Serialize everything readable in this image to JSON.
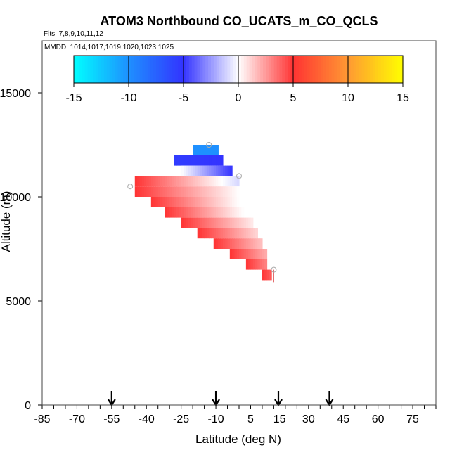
{
  "chart_data": {
    "type": "heatmap",
    "title": "ATOM3 Northbound CO_UCATS_m_CO_QCLS",
    "subtitle_flights": "Flts: 7,8,9,10,11,12",
    "subtitle_dates": "MMDD: 1014,1017,1019,1020,1023,1025",
    "xlabel": "Latitude (deg N)",
    "ylabel": "Altitude (m)",
    "xlim": [
      -85,
      85
    ],
    "ylim": [
      0,
      17500
    ],
    "x_ticks": [
      -85,
      -80,
      -75,
      -70,
      -65,
      -60,
      -55,
      -50,
      -45,
      -40,
      -35,
      -30,
      -25,
      -20,
      -15,
      -10,
      -5,
      0,
      5,
      10,
      15,
      20,
      25,
      30,
      35,
      40,
      45,
      50,
      55,
      60,
      65,
      70,
      75,
      80,
      85
    ],
    "x_tick_labels": [
      "-85",
      "-70",
      "-55",
      "-40",
      "-25",
      "-10",
      "5",
      "15",
      "30",
      "45",
      "60",
      "75"
    ],
    "x_tick_label_values": [
      -85,
      -70,
      -55,
      -40,
      -25,
      -10,
      5,
      17.5,
      30,
      45,
      60,
      75
    ],
    "y_ticks": [
      0,
      5000,
      10000,
      15000
    ],
    "y_tick_labels": [
      "0",
      "5000",
      "10000",
      "15000"
    ],
    "colorbar": {
      "min": -15,
      "max": 15,
      "ticks": [
        -15,
        -10,
        -5,
        0,
        5,
        10,
        15
      ],
      "tick_labels": [
        "-15",
        "-10",
        "-5",
        "0",
        "5",
        "10",
        "15"
      ],
      "stops": [
        {
          "v": -15,
          "c": "#00ffff"
        },
        {
          "v": -10,
          "c": "#1e90ff"
        },
        {
          "v": -5,
          "c": "#3333ff"
        },
        {
          "v": 0,
          "c": "#ffffff"
        },
        {
          "v": 5,
          "c": "#ff3333"
        },
        {
          "v": 10,
          "c": "#ff9933"
        },
        {
          "v": 15,
          "c": "#ffff00"
        }
      ]
    },
    "arrows_latitude": [
      -55,
      -10,
      17,
      39
    ],
    "rows": [
      {
        "alt": [
          12000,
          12500
        ],
        "lat": [
          -20,
          -9
        ],
        "from": -10,
        "to": -10
      },
      {
        "alt": [
          11500,
          12000
        ],
        "lat": [
          -28,
          -7
        ],
        "from": -5.5,
        "to": -5
      },
      {
        "alt": [
          11000,
          11500
        ],
        "lat": [
          -25,
          -3
        ],
        "from": 0,
        "to": -5
      },
      {
        "alt": [
          10500,
          11000
        ],
        "lat": [
          -45,
          0
        ],
        "from": 5,
        "to": -1
      },
      {
        "alt": [
          10000,
          10500
        ],
        "lat": [
          -45,
          0
        ],
        "from": 5,
        "to": 0
      },
      {
        "alt": [
          9500,
          10000
        ],
        "lat": [
          -38,
          0
        ],
        "from": 5,
        "to": 0
      },
      {
        "alt": [
          9000,
          9500
        ],
        "lat": [
          -32,
          2
        ],
        "from": 5,
        "to": 0
      },
      {
        "alt": [
          8500,
          9000
        ],
        "lat": [
          -25,
          6
        ],
        "from": 5,
        "to": 0.5
      },
      {
        "alt": [
          8000,
          8500
        ],
        "lat": [
          -18,
          8
        ],
        "from": 5,
        "to": 1
      },
      {
        "alt": [
          7500,
          8000
        ],
        "lat": [
          -11,
          10
        ],
        "from": 5,
        "to": 1.5
      },
      {
        "alt": [
          7000,
          7500
        ],
        "lat": [
          -4,
          12
        ],
        "from": 5,
        "to": 2
      },
      {
        "alt": [
          6500,
          7000
        ],
        "lat": [
          3,
          12
        ],
        "from": 5,
        "to": 3
      },
      {
        "alt": [
          6000,
          6500
        ],
        "lat": [
          10,
          14
        ],
        "from": 5,
        "to": 4
      }
    ],
    "markers": [
      {
        "lat": -47,
        "alt": 10500
      },
      {
        "lat": -13,
        "alt": 12500
      },
      {
        "lat": 0,
        "alt": 11000
      },
      {
        "lat": 15,
        "alt": 6500
      }
    ],
    "stem": {
      "lat": 15,
      "alt": [
        5900,
        6500
      ]
    }
  }
}
